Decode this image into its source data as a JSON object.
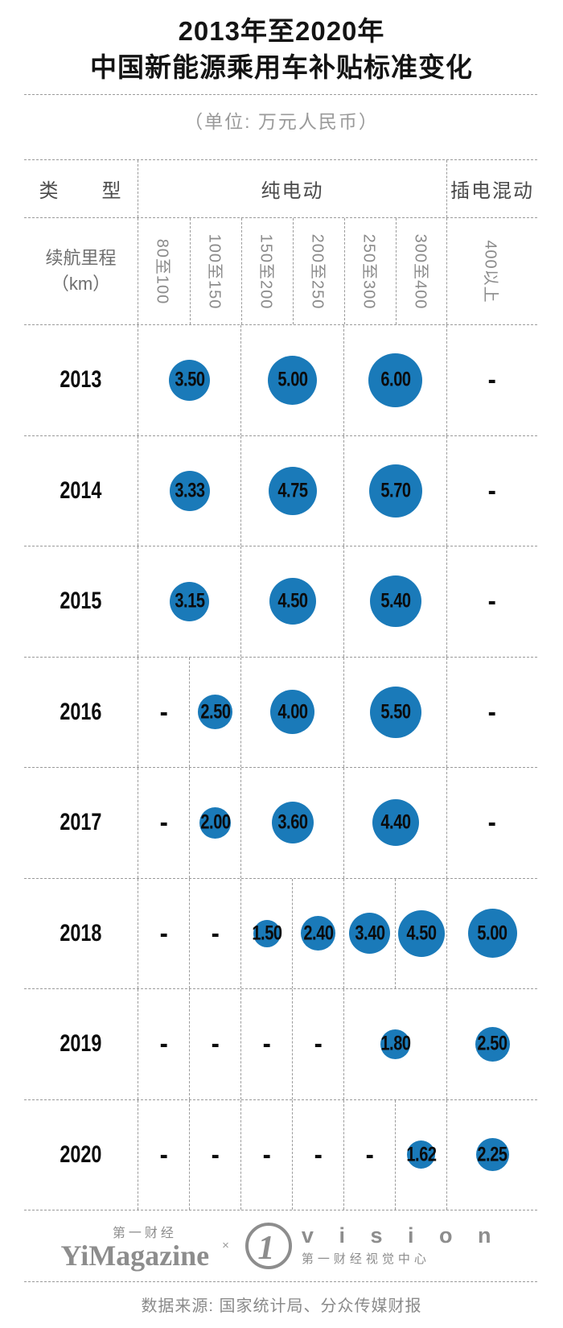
{
  "title_line1": "2013年至2020年",
  "title_line2": "中国新能源乘用车补贴标准变化",
  "subtitle": "（单位: 万元人民币）",
  "header": {
    "type_label": "类　　型",
    "bev": "纯电动",
    "phev": "插电混动",
    "range_line1": "续航里程",
    "range_line2": "（km）"
  },
  "chart_data": {
    "type": "table",
    "title": "2013年至2020年中国新能源乘用车补贴标准变化",
    "unit": "万元人民币",
    "bubble_color": "#1a7ab9",
    "group_headers": [
      "纯电动",
      "插电混动"
    ],
    "range_columns": [
      "80至100",
      "100至150",
      "150至200",
      "200至250",
      "250至300",
      "300至400"
    ],
    "phev_range_column": "400以上",
    "rows": [
      {
        "year": "2013",
        "cells": [
          {
            "cols": 2,
            "v": "3.50"
          },
          {
            "cols": 2,
            "v": "5.00"
          },
          {
            "cols": 2,
            "v": "6.00"
          },
          {
            "phev": true,
            "v": "-"
          }
        ]
      },
      {
        "year": "2014",
        "cells": [
          {
            "cols": 2,
            "v": "3.33"
          },
          {
            "cols": 2,
            "v": "4.75"
          },
          {
            "cols": 2,
            "v": "5.70"
          },
          {
            "phev": true,
            "v": "-"
          }
        ]
      },
      {
        "year": "2015",
        "cells": [
          {
            "cols": 2,
            "v": "3.15"
          },
          {
            "cols": 2,
            "v": "4.50"
          },
          {
            "cols": 2,
            "v": "5.40"
          },
          {
            "phev": true,
            "v": "-"
          }
        ]
      },
      {
        "year": "2016",
        "cells": [
          {
            "cols": 1,
            "v": "-"
          },
          {
            "cols": 1,
            "v": "2.50"
          },
          {
            "cols": 2,
            "v": "4.00"
          },
          {
            "cols": 2,
            "v": "5.50"
          },
          {
            "phev": true,
            "v": "-"
          }
        ]
      },
      {
        "year": "2017",
        "cells": [
          {
            "cols": 1,
            "v": "-"
          },
          {
            "cols": 1,
            "v": "2.00"
          },
          {
            "cols": 2,
            "v": "3.60"
          },
          {
            "cols": 2,
            "v": "4.40"
          },
          {
            "phev": true,
            "v": "-"
          }
        ]
      },
      {
        "year": "2018",
        "cells": [
          {
            "cols": 1,
            "v": "-"
          },
          {
            "cols": 1,
            "v": "-"
          },
          {
            "cols": 1,
            "v": "1.50"
          },
          {
            "cols": 1,
            "v": "2.40"
          },
          {
            "cols": 1,
            "v": "3.40"
          },
          {
            "cols": 1,
            "v": "4.50"
          },
          {
            "phev": true,
            "v": "5.00"
          }
        ]
      },
      {
        "year": "2019",
        "cells": [
          {
            "cols": 1,
            "v": "-"
          },
          {
            "cols": 1,
            "v": "-"
          },
          {
            "cols": 1,
            "v": "-"
          },
          {
            "cols": 1,
            "v": "-"
          },
          {
            "cols": 2,
            "v": "1.80"
          },
          {
            "phev": true,
            "v": "2.50"
          }
        ]
      },
      {
        "year": "2020",
        "cells": [
          {
            "cols": 1,
            "v": "-"
          },
          {
            "cols": 1,
            "v": "-"
          },
          {
            "cols": 1,
            "v": "-"
          },
          {
            "cols": 1,
            "v": "-"
          },
          {
            "cols": 1,
            "v": "-"
          },
          {
            "cols": 1,
            "v": "1.62"
          },
          {
            "phev": true,
            "v": "2.25"
          }
        ]
      }
    ]
  },
  "footer": {
    "brand_cn": "第一财经",
    "brand_en": "YiMagazine",
    "cross": "×",
    "logo_digit": "1",
    "vision_en": "v i s i o n",
    "vision_cn": "第一财经视觉中心"
  },
  "source": "数据来源: 国家统计局、分众传媒财报"
}
